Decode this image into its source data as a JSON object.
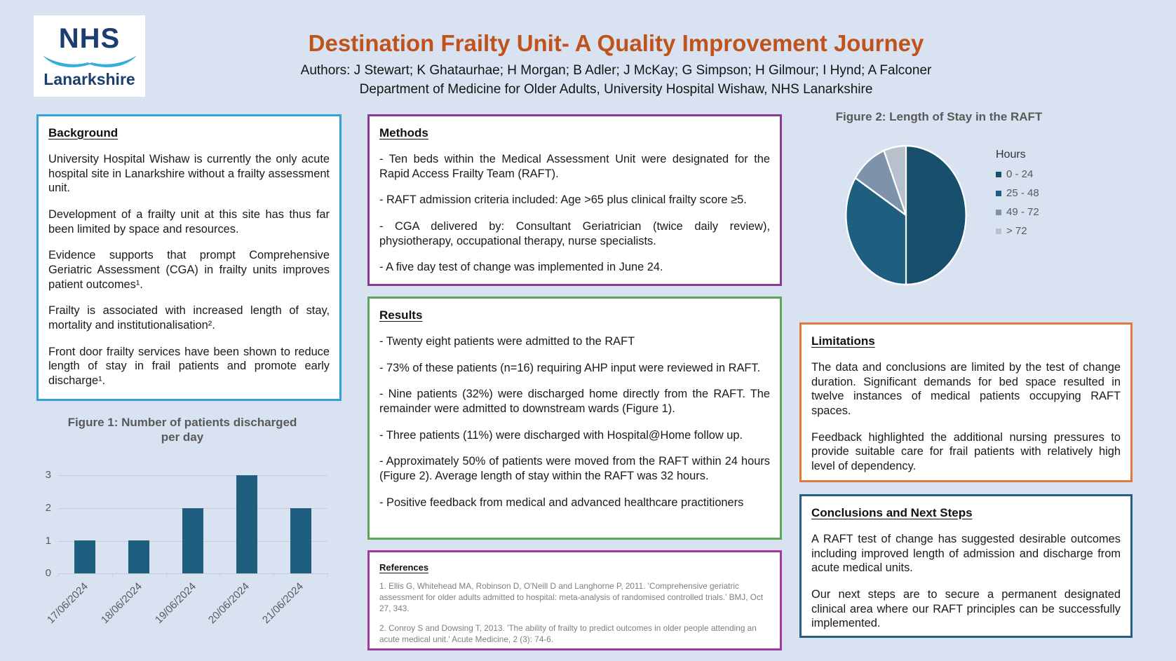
{
  "poster": {
    "logo": {
      "line1": "NHS",
      "line2": "Lanarkshire"
    },
    "title": "Destination Frailty Unit- A Quality Improvement Journey",
    "authors": "Authors: J Stewart; K Ghataurhae; H Morgan; B Adler; J McKay; G Simpson; H Gilmour; I Hynd; A Falconer",
    "department": "Department of Medicine for Older Adults, University Hospital Wishaw, NHS Lanarkshire"
  },
  "background": {
    "heading": "Background",
    "paragraphs": [
      "University Hospital Wishaw is currently the only acute hospital site in Lanarkshire without a frailty assessment unit.",
      "Development of a frailty unit at this site has thus far been limited by space and resources.",
      "Evidence supports that prompt Comprehensive Geriatric Assessment (CGA) in frailty units improves patient outcomes¹.",
      "Frailty is associated with increased length of stay, mortality and institutionalisation².",
      "Front door frailty services have been shown to reduce length of stay in frail patients and promote early discharge¹."
    ]
  },
  "methods": {
    "heading": "Methods",
    "items": [
      "- Ten beds within the Medical Assessment Unit were designated for the Rapid Access Frailty Team (RAFT).",
      "- RAFT admission criteria included: Age >65 plus clinical frailty score ≥5.",
      "- CGA delivered by: Consultant Geriatrician (twice daily review), physiotherapy, occupational therapy, nurse specialists.",
      "- A five day test of change was implemented in June 24."
    ]
  },
  "results": {
    "heading": "Results",
    "items": [
      "- Twenty eight patients were admitted to the RAFT",
      "- 73% of these patients (n=16) requiring AHP input were reviewed in RAFT.",
      "- Nine patients (32%) were discharged home directly from the RAFT. The remainder were admitted to downstream wards (Figure 1).",
      "- Three patients (11%) were discharged with Hospital@Home follow up.",
      "- Approximately 50% of patients were moved from the RAFT within 24 hours (Figure 2). Average length of stay within the RAFT was 32 hours.",
      "- Positive feedback from medical and advanced healthcare practitioners"
    ]
  },
  "references": {
    "heading": "References",
    "items": [
      "1. Ellis G, Whitehead MA, Robinson D, O'Neill D and Langhorne P, 2011. 'Comprehensive geriatric assessment for older adults admitted to hospital: meta-analysis of randomised controlled trials.' BMJ, Oct 27, 343.",
      "2. Conroy S and Dowsing T, 2013. 'The ability of frailty to predict outcomes in older people attending an acute medical unit.' Acute Medicine, 2 (3): 74-6."
    ]
  },
  "limitations": {
    "heading": "Limitations",
    "paragraphs": [
      "The data and conclusions are limited by the test of change duration. Significant demands for bed space resulted in twelve instances of medical patients occupying RAFT spaces.",
      "Feedback highlighted the additional nursing pressures to provide suitable care for frail patients with relatively high level of dependency."
    ]
  },
  "conclusions": {
    "heading": "Conclusions and Next Steps",
    "paragraphs": [
      "A RAFT test of change has suggested desirable outcomes including improved length of admission and discharge from acute medical units.",
      "Our next steps are to secure a permanent designated clinical area where our RAFT principles can be successfully implemented."
    ]
  },
  "chart_data": [
    {
      "id": "figure1",
      "type": "bar",
      "title": "Figure 1: Number of patients discharged per day",
      "categories": [
        "17/06/2024",
        "18/06/2024",
        "19/06/2024",
        "20/06/2024",
        "21/06/2024"
      ],
      "values": [
        1,
        1,
        2,
        3,
        2
      ],
      "xlabel": "",
      "ylabel": "",
      "ylim": [
        0,
        3
      ],
      "yticks": [
        0,
        1,
        2,
        3
      ],
      "grid": true,
      "bar_color": "#1E5F80"
    },
    {
      "id": "figure2",
      "type": "pie",
      "title": "Figure 2: Length of Stay in the RAFT",
      "legend_title": "Hours",
      "legend_position": "right",
      "labels": [
        "0 - 24",
        "25 - 48",
        "49 - 72",
        "> 72"
      ],
      "values_percent": [
        50,
        34,
        10,
        6
      ],
      "colors": [
        "#174F6D",
        "#1E5F80",
        "#7D93A9",
        "#B8C1CB"
      ]
    }
  ],
  "colors": {
    "page_background": "#D9E2F1",
    "title_accent": "#C0531B",
    "background_border": "#31A3DC",
    "methods_border": "#8A3A92",
    "results_border": "#5AA757",
    "references_border": "#A03A9C",
    "limitations_border": "#E0793D",
    "conclusions_border": "#25607F",
    "nhs_navy": "#1B3E6E",
    "nhs_swoosh": "#35AEDC"
  }
}
